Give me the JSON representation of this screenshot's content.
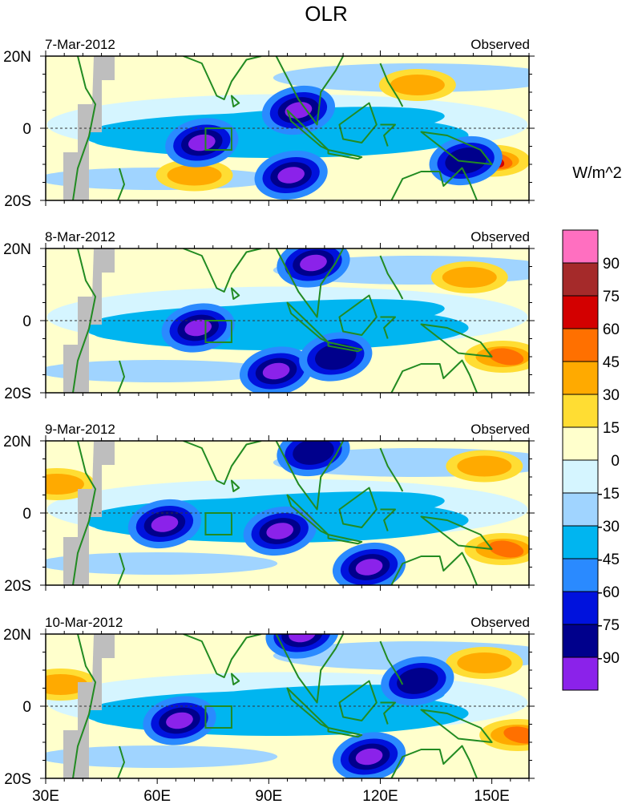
{
  "chart_data": {
    "type": "heatmap",
    "title": "OLR",
    "units": "W/m^2",
    "x_ticks": [
      "30E",
      "60E",
      "90E",
      "120E",
      "150E"
    ],
    "x_tick_values": [
      30,
      60,
      90,
      120,
      150
    ],
    "xlim": [
      30,
      160
    ],
    "y_ticks": [
      "20N",
      "0",
      "20S"
    ],
    "y_tick_values": [
      20,
      0,
      -20
    ],
    "ylim": [
      -20,
      20
    ],
    "grid": false,
    "colorbar": {
      "placement": "right",
      "labels": [
        "90",
        "75",
        "60",
        "45",
        "30",
        "15",
        "0",
        "-15",
        "-30",
        "-45",
        "-60",
        "-75",
        "-90"
      ],
      "label_values": [
        90,
        75,
        60,
        45,
        30,
        15,
        0,
        -15,
        -30,
        -45,
        -60,
        -75,
        -90
      ],
      "colors": [
        "#ff6fc0",
        "#a52a2a",
        "#d30000",
        "#ff7000",
        "#ffaa00",
        "#ffdd33",
        "#ffffcc",
        "#d5f5ff",
        "#a0d4ff",
        "#00b5f0",
        "#2a8aff",
        "#0012dd",
        "#00008c",
        "#8b22ea"
      ]
    },
    "overlays": {
      "coastline_color": "#228b22",
      "box_region_color": "#228b22",
      "missing_color": "#bebebe"
    },
    "panels": [
      {
        "date": "7-Mar-2012",
        "label": "Observed",
        "convection_cores": [
          {
            "lon": 72,
            "lat": -4,
            "value": -90
          },
          {
            "lon": 98,
            "lat": 5,
            "value": -90
          },
          {
            "lon": 96,
            "lat": -13,
            "value": -90
          },
          {
            "lon": 143,
            "lat": -9,
            "value": -75
          }
        ],
        "warm_anomalies": [
          {
            "lon": 150,
            "lat": -9,
            "value": 60
          },
          {
            "lon": 130,
            "lat": 12,
            "value": 30
          },
          {
            "lon": 70,
            "lat": -13,
            "value": 30
          }
        ]
      },
      {
        "date": "8-Mar-2012",
        "label": "Observed",
        "convection_cores": [
          {
            "lon": 71,
            "lat": -2,
            "value": -90
          },
          {
            "lon": 102,
            "lat": 16,
            "value": -90
          },
          {
            "lon": 92,
            "lat": -14,
            "value": -90
          },
          {
            "lon": 108,
            "lat": -10,
            "value": -75
          }
        ],
        "warm_anomalies": [
          {
            "lon": 144,
            "lat": 12,
            "value": 30
          },
          {
            "lon": 153,
            "lat": -10,
            "value": 45
          }
        ]
      },
      {
        "date": "9-Mar-2012",
        "label": "Observed",
        "convection_cores": [
          {
            "lon": 62,
            "lat": -3,
            "value": -90
          },
          {
            "lon": 93,
            "lat": -5,
            "value": -90
          },
          {
            "lon": 117,
            "lat": -15,
            "value": -90
          },
          {
            "lon": 102,
            "lat": 17,
            "value": -75
          }
        ],
        "warm_anomalies": [
          {
            "lon": 148,
            "lat": 13,
            "value": 30
          },
          {
            "lon": 153,
            "lat": -10,
            "value": 45
          },
          {
            "lon": 33,
            "lat": 8,
            "value": 30
          }
        ]
      },
      {
        "date": "10-Mar-2012",
        "label": "Observed",
        "convection_cores": [
          {
            "lon": 66,
            "lat": -4,
            "value": -90
          },
          {
            "lon": 99,
            "lat": 20,
            "value": -90
          },
          {
            "lon": 117,
            "lat": -14,
            "value": -90
          },
          {
            "lon": 130,
            "lat": 7,
            "value": -75
          }
        ],
        "warm_anomalies": [
          {
            "lon": 148,
            "lat": 12,
            "value": 30
          },
          {
            "lon": 157,
            "lat": -8,
            "value": 45
          },
          {
            "lon": 34,
            "lat": 6,
            "value": 30
          }
        ]
      }
    ],
    "highlight_box": {
      "lon": [
        73,
        80
      ],
      "lat": [
        -6,
        0
      ]
    }
  }
}
